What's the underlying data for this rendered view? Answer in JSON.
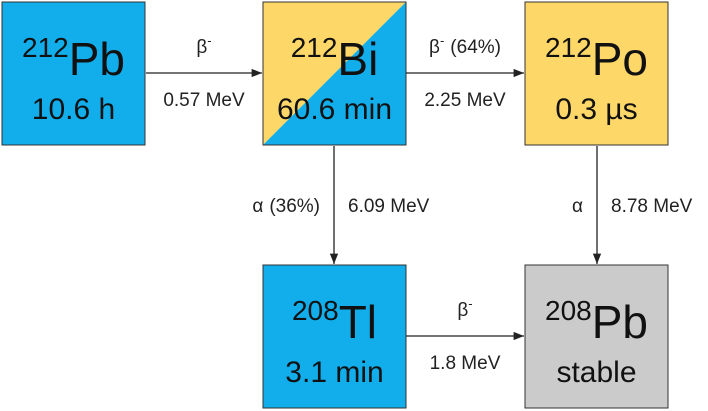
{
  "nodes": [
    {
      "mass": "212",
      "symbol": "Pb",
      "half_life": "10.6 h"
    },
    {
      "mass": "212",
      "symbol": "Bi",
      "half_life": "60.6 min"
    },
    {
      "mass": "212",
      "symbol": "Po",
      "half_life": "0.3 µs"
    },
    {
      "mass": "208",
      "symbol": "Tl",
      "half_life": "3.1 min"
    },
    {
      "mass": "208",
      "symbol": "Pb",
      "half_life": "stable"
    }
  ],
  "edges": [
    {
      "mode": "β",
      "mode_sup": "-",
      "energy": "0.57 MeV"
    },
    {
      "mode": "β",
      "mode_sup": "-",
      "branch": "(64%)",
      "energy": "2.25 MeV"
    },
    {
      "mode": "α",
      "branch": "(36%)",
      "energy": "6.09 MeV"
    },
    {
      "mode": "α",
      "energy": "8.78 MeV"
    },
    {
      "mode": "β",
      "mode_sup": "-",
      "energy": "1.8 MeV"
    }
  ]
}
